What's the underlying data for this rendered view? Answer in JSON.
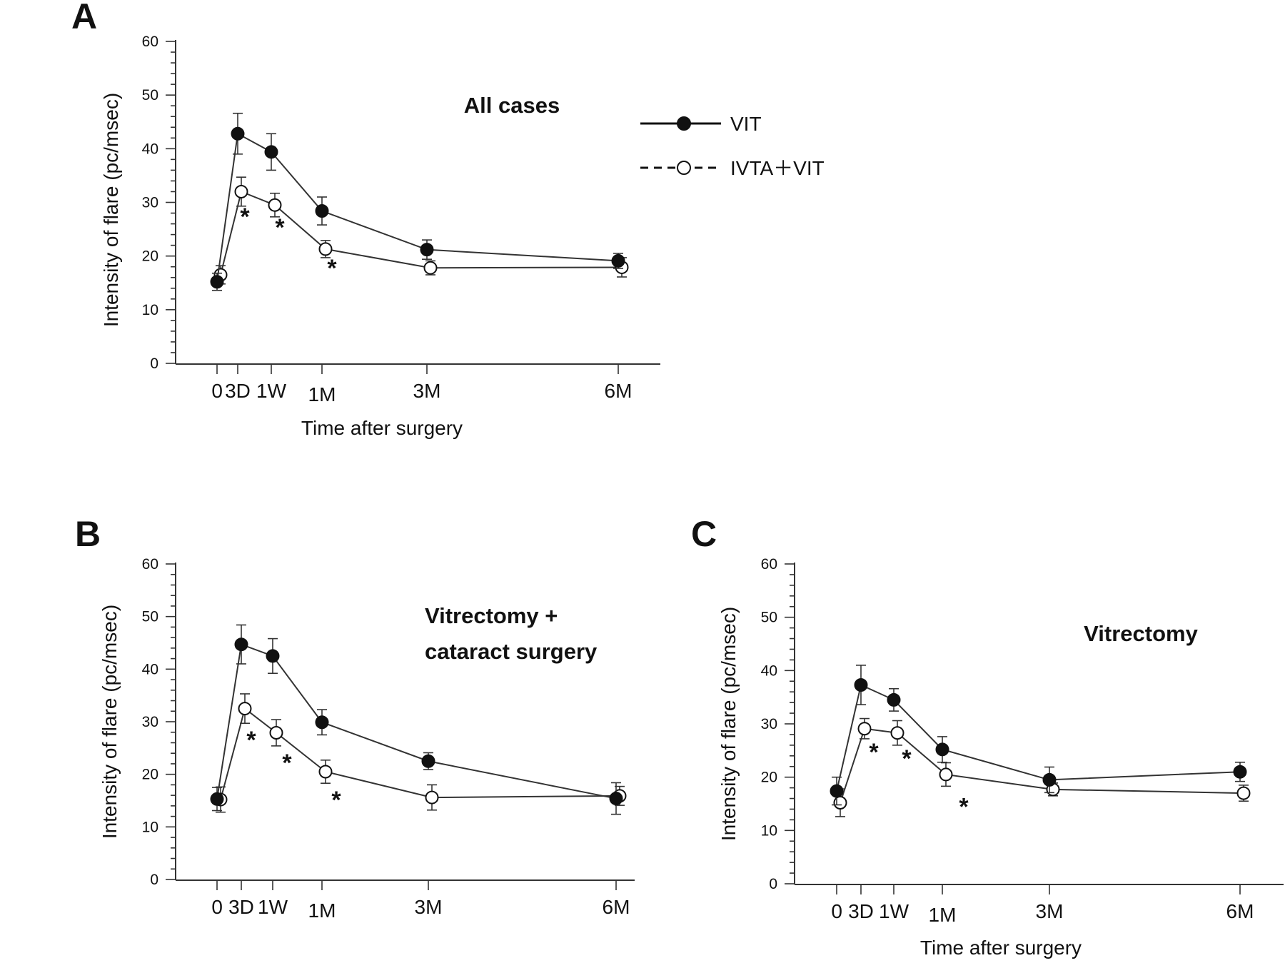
{
  "chart_data": [
    {
      "id": "A",
      "panel_label": "A",
      "type": "line",
      "title": "All cases",
      "ylabel": "Intensity of flare (pc/msec)",
      "xlabel": "Time after surgery",
      "ylim": [
        0,
        60
      ],
      "y_ticks": [
        "0",
        "10",
        "20",
        "30",
        "40",
        "50",
        "60"
      ],
      "x_ticks": [
        {
          "label": "0",
          "day": 0
        },
        {
          "label": "3D",
          "day": 3
        },
        {
          "label": "1W",
          "day": 7
        },
        {
          "label": "1M",
          "day": 30
        },
        {
          "label": "3M",
          "day": 90
        },
        {
          "label": "6M",
          "day": 180
        }
      ],
      "show_legend": true,
      "series": [
        {
          "name": "VIT",
          "style": "solid-filled",
          "x": [
            0,
            3,
            7,
            30,
            90,
            180
          ],
          "y": [
            15.2,
            42.8,
            39.4,
            28.4,
            21.2,
            19.1
          ],
          "err": [
            1.6,
            3.8,
            3.4,
            2.6,
            1.8,
            1.4
          ]
        },
        {
          "name": "IVTA + VIT",
          "style": "dashed-open",
          "x": [
            0,
            3,
            7,
            30,
            90,
            180
          ],
          "y": [
            16.5,
            32.0,
            29.5,
            21.3,
            17.8,
            17.9
          ],
          "err": [
            1.7,
            2.7,
            2.2,
            1.6,
            1.3,
            1.8
          ]
        }
      ],
      "significance": [
        {
          "label": "*",
          "x": 3
        },
        {
          "label": "*",
          "x": 7
        },
        {
          "label": "*",
          "x": 30
        }
      ]
    },
    {
      "id": "B",
      "panel_label": "B",
      "type": "line",
      "title": "Vitrectomy +",
      "title_line2": "cataract surgery",
      "ylabel": "Intensity of flare (pc/msec)",
      "xlabel": "",
      "ylim": [
        0,
        60
      ],
      "y_ticks": [
        "0",
        "10",
        "20",
        "30",
        "40",
        "50",
        "60"
      ],
      "x_ticks": [
        {
          "label": "0",
          "day": 0
        },
        {
          "label": "3D",
          "day": 3
        },
        {
          "label": "1W",
          "day": 7
        },
        {
          "label": "1M",
          "day": 30
        },
        {
          "label": "3M",
          "day": 90
        },
        {
          "label": "6M",
          "day": 180
        }
      ],
      "show_legend": false,
      "series": [
        {
          "name": "VIT",
          "style": "solid-filled",
          "x": [
            0,
            3,
            7,
            30,
            90,
            180
          ],
          "y": [
            15.3,
            44.7,
            42.5,
            29.9,
            22.5,
            15.4
          ],
          "err": [
            2.2,
            3.7,
            3.3,
            2.4,
            1.6,
            3.0
          ]
        },
        {
          "name": "IVTA + VIT",
          "style": "dashed-open",
          "x": [
            0,
            3,
            7,
            30,
            90,
            180
          ],
          "y": [
            15.2,
            32.5,
            27.9,
            20.5,
            15.6,
            15.9
          ],
          "err": [
            2.4,
            2.8,
            2.5,
            2.2,
            2.4,
            1.8
          ]
        }
      ],
      "significance": [
        {
          "label": "*",
          "x": 3
        },
        {
          "label": "*",
          "x": 7
        },
        {
          "label": "*",
          "x": 30
        }
      ]
    },
    {
      "id": "C",
      "panel_label": "C",
      "type": "line",
      "title": "Vitrectomy",
      "ylabel": "Intensity of flare (pc/msec)",
      "xlabel": "Time after surgery",
      "ylim": [
        0,
        60
      ],
      "y_ticks": [
        "0",
        "10",
        "20",
        "30",
        "40",
        "50",
        "60"
      ],
      "x_ticks": [
        {
          "label": "0",
          "day": 0
        },
        {
          "label": "3D",
          "day": 3
        },
        {
          "label": "1W",
          "day": 7
        },
        {
          "label": "1M",
          "day": 30
        },
        {
          "label": "3M",
          "day": 90
        },
        {
          "label": "6M",
          "day": 180
        }
      ],
      "show_legend": false,
      "series": [
        {
          "name": "VIT",
          "style": "solid-filled",
          "x": [
            0,
            3,
            7,
            30,
            90,
            180
          ],
          "y": [
            17.4,
            37.3,
            34.5,
            25.2,
            19.5,
            21.0
          ],
          "err": [
            2.6,
            3.7,
            2.1,
            2.4,
            2.4,
            1.8
          ]
        },
        {
          "name": "IVTA + VIT",
          "style": "dashed-open",
          "x": [
            0,
            3,
            7,
            30,
            90,
            180
          ],
          "y": [
            15.2,
            29.1,
            28.3,
            20.5,
            17.7,
            17.0
          ],
          "err": [
            2.6,
            1.9,
            2.3,
            2.2,
            1.2,
            1.5
          ]
        }
      ],
      "significance": [
        {
          "label": "*",
          "x": 3
        },
        {
          "label": "*",
          "x": 7
        },
        {
          "label": "*",
          "x": 30
        }
      ]
    }
  ],
  "legend": {
    "entries": [
      {
        "label": "VIT",
        "style": "solid-filled"
      },
      {
        "label": "IVTA＋VIT",
        "style": "dashed-open"
      }
    ]
  }
}
